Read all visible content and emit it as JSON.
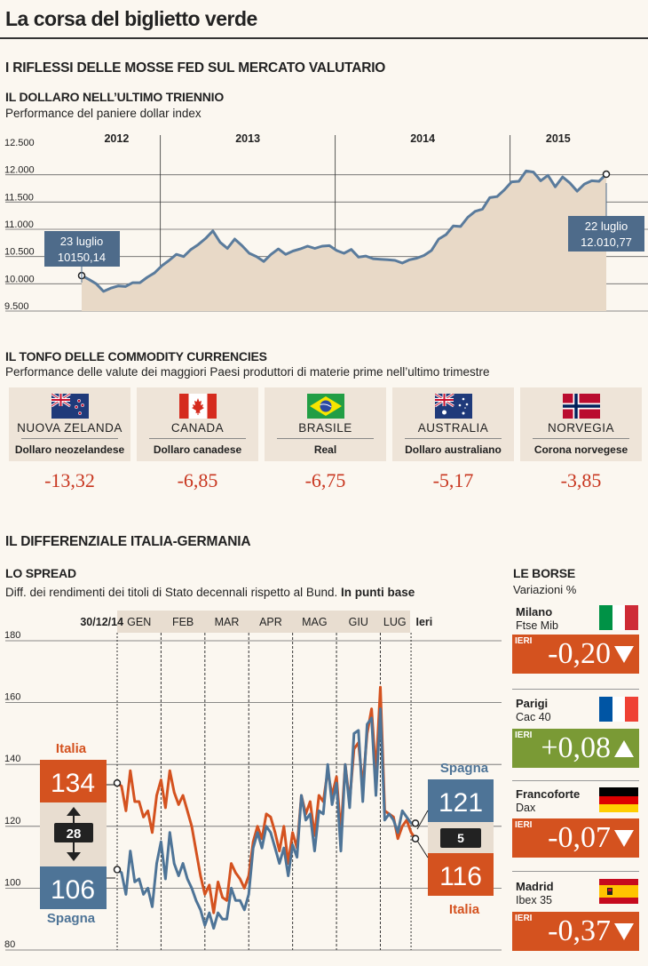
{
  "header": {
    "title": "La corsa del biglietto verde"
  },
  "section1": {
    "title": "I RIFLESSI DELLE MOSSE FED SUL MERCATO VALUTARIO",
    "chart_title": "IL DOLLARO NELL’ULTIMO TRIENNIO",
    "chart_subtitle": "Performance del paniere dollar index",
    "start_label": {
      "date": "23 luglio",
      "value": "10150,14"
    },
    "end_label": {
      "date": "22 luglio",
      "value": "12.010,77"
    }
  },
  "section2": {
    "title": "IL TONFO DELLE COMMODITY CURRENCIES",
    "subtitle": "Performance delle valute dei maggiori Paesi produttori di materie prime nell’ultimo trimestre",
    "currencies": [
      {
        "country": "NUOVA ZELANDA",
        "currency": "Dollaro neozelandese",
        "value": "-13,32",
        "flag": "new-zealand-flag"
      },
      {
        "country": "CANADA",
        "currency": "Dollaro canadese",
        "value": "-6,85",
        "flag": "canada-flag"
      },
      {
        "country": "BRASILE",
        "currency": "Real",
        "value": "-6,75",
        "flag": "brazil-flag"
      },
      {
        "country": "AUSTRALIA",
        "currency": "Dollaro australiano",
        "value": "-5,17",
        "flag": "australia-flag"
      },
      {
        "country": "NORVEGIA",
        "currency": "Corona norvegese",
        "value": "-3,85",
        "flag": "norway-flag"
      }
    ]
  },
  "section3": {
    "title": "IL DIFFERENZIALE ITALIA-GERMANIA",
    "spread_title": "LO SPREAD",
    "spread_subtitle": "Diff. dei rendimenti dei titoli di Stato decennali rispetto al Bund.",
    "spread_unit": "In punti base",
    "left_panel": {
      "italia_label": "Italia",
      "italia_value": "134",
      "diff": "28",
      "spagna_value": "106",
      "spagna_label": "Spagna"
    },
    "right_panel": {
      "spagna_label": "Spagna",
      "spagna_value": "121",
      "diff": "5",
      "italia_value": "116",
      "italia_label": "Italia"
    }
  },
  "borse": {
    "title": "LE BORSE",
    "subtitle": "Variazioni %",
    "ieri_label": "IERI",
    "items": [
      {
        "city": "Milano",
        "index": "Ftse Mib",
        "value": "-0,20",
        "direction": "down",
        "color": "#d4521f",
        "flag": "italy-flag"
      },
      {
        "city": "Parigi",
        "index": "Cac 40",
        "value": "+0,08",
        "direction": "up",
        "color": "#7a9a35",
        "flag": "france-flag"
      },
      {
        "city": "Francoforte",
        "index": "Dax",
        "value": "-0,07",
        "direction": "down",
        "color": "#d4521f",
        "flag": "germany-flag"
      },
      {
        "city": "Madrid",
        "index": "Ibex 35",
        "value": "-0,37",
        "direction": "down",
        "color": "#d4521f",
        "flag": "spain-flag"
      }
    ]
  },
  "colors": {
    "usd_line": "#5a7b9c",
    "usd_fill": "#e8d9c7",
    "italia": "#d4521f",
    "spagna": "#4e7497",
    "negative": "#c8361f"
  },
  "chart_data": [
    {
      "type": "area",
      "title": "IL DOLLARO NELL’ULTIMO TRIENNIO",
      "subtitle": "Performance del paniere dollar index",
      "x_labels": [
        "2012",
        "2013",
        "2014",
        "2015"
      ],
      "y_ticks": [
        "9.500",
        "10.000",
        "10.500",
        "11.000",
        "11.500",
        "12.000",
        "12.500"
      ],
      "ylim": [
        9500,
        12500
      ],
      "x_range": [
        0,
        36
      ],
      "series": [
        {
          "name": "dollar index",
          "x": [
            0,
            0.5,
            1,
            1.5,
            2,
            2.5,
            3,
            3.5,
            4,
            4.5,
            5,
            5.5,
            6,
            6.5,
            7,
            7.5,
            8,
            8.5,
            9,
            9.5,
            10,
            10.5,
            11,
            11.5,
            12,
            12.5,
            13,
            13.5,
            14,
            14.5,
            15,
            15.5,
            16,
            16.5,
            17,
            17.5,
            18,
            18.5,
            19,
            19.5,
            20,
            20.5,
            21,
            21.5,
            22,
            22.5,
            23,
            23.5,
            24,
            24.5,
            25,
            25.5,
            26,
            26.5,
            27,
            27.5,
            28,
            28.5,
            29,
            29.5,
            30,
            30.5,
            31,
            31.5,
            32,
            32.5,
            33,
            33.5,
            34,
            34.5,
            35,
            35.5,
            36
          ],
          "values": [
            10150,
            10080,
            10000,
            9860,
            9920,
            9960,
            9950,
            10020,
            10020,
            10120,
            10200,
            10330,
            10430,
            10540,
            10500,
            10630,
            10720,
            10830,
            10970,
            10760,
            10650,
            10820,
            10700,
            10560,
            10500,
            10410,
            10540,
            10640,
            10540,
            10600,
            10640,
            10690,
            10650,
            10690,
            10700,
            10610,
            10560,
            10630,
            10490,
            10510,
            10460,
            10450,
            10440,
            10430,
            10380,
            10440,
            10470,
            10520,
            10610,
            10820,
            10900,
            11060,
            11050,
            11220,
            11330,
            11370,
            11580,
            11600,
            11720,
            11870,
            11880,
            12070,
            12050,
            11890,
            11990,
            11780,
            11960,
            11850,
            11700,
            11830,
            11890,
            11880,
            12010
          ]
        }
      ]
    },
    {
      "type": "bar",
      "title": "IL TONFO DELLE COMMODITY CURRENCIES",
      "categories": [
        "NUOVA ZELANDA",
        "CANADA",
        "BRASILE",
        "AUSTRALIA",
        "NORVEGIA"
      ],
      "values": [
        -13.32,
        -6.85,
        -6.75,
        -5.17,
        -3.85
      ]
    },
    {
      "type": "line",
      "title": "LO SPREAD",
      "ylabel": "In punti base",
      "ylim": [
        80,
        180
      ],
      "y_ticks": [
        "80",
        "100",
        "120",
        "140",
        "160",
        "180"
      ],
      "x_labels": [
        "30/12/14",
        "GEN",
        "FEB",
        "MAR",
        "APR",
        "MAG",
        "GIU",
        "LUG",
        "Ieri"
      ],
      "x_range": [
        0,
        68
      ],
      "series": [
        {
          "name": "Italia",
          "x": [
            0,
            1,
            2,
            3,
            4,
            5,
            6,
            7,
            8,
            9,
            10,
            11,
            12,
            13,
            14,
            15,
            16,
            17,
            18,
            19,
            20,
            21,
            22,
            23,
            24,
            25,
            26,
            27,
            28,
            29,
            30,
            31,
            32,
            33,
            34,
            35,
            36,
            37,
            38,
            39,
            40,
            41,
            42,
            43,
            44,
            45,
            46,
            47,
            48,
            49,
            50,
            51,
            52,
            53,
            54,
            55,
            56,
            57,
            58,
            59,
            60,
            61,
            62,
            63,
            64,
            65,
            66,
            67,
            68
          ],
          "values": [
            134,
            133,
            125,
            138,
            128,
            128,
            123,
            125,
            118,
            130,
            135,
            126,
            138,
            131,
            127,
            130,
            125,
            120,
            112,
            104,
            98,
            101,
            92,
            102,
            97,
            96,
            108,
            105,
            103,
            100,
            104,
            115,
            120,
            116,
            124,
            123,
            118,
            112,
            120,
            108,
            118,
            113,
            130,
            124,
            128,
            117,
            130,
            128,
            138,
            130,
            136,
            118,
            140,
            128,
            145,
            147,
            133,
            150,
            158,
            137,
            165,
            125,
            124,
            123,
            116,
            120,
            122,
            118,
            116
          ]
        },
        {
          "name": "Spagna",
          "x": [
            0,
            1,
            2,
            3,
            4,
            5,
            6,
            7,
            8,
            9,
            10,
            11,
            12,
            13,
            14,
            15,
            16,
            17,
            18,
            19,
            20,
            21,
            22,
            23,
            24,
            25,
            26,
            27,
            28,
            29,
            30,
            31,
            32,
            33,
            34,
            35,
            36,
            37,
            38,
            39,
            40,
            41,
            42,
            43,
            44,
            45,
            46,
            47,
            48,
            49,
            50,
            51,
            52,
            53,
            54,
            55,
            56,
            57,
            58,
            59,
            60,
            61,
            62,
            63,
            64,
            65,
            66,
            67,
            68
          ],
          "values": [
            106,
            105,
            98,
            112,
            102,
            103,
            98,
            100,
            94,
            108,
            115,
            103,
            118,
            108,
            104,
            108,
            103,
            100,
            96,
            93,
            88,
            92,
            87,
            92,
            90,
            90,
            100,
            96,
            96,
            93,
            98,
            113,
            118,
            113,
            120,
            118,
            113,
            108,
            113,
            104,
            114,
            110,
            130,
            122,
            124,
            112,
            125,
            124,
            140,
            127,
            134,
            112,
            140,
            126,
            150,
            151,
            128,
            153,
            155,
            130,
            158,
            122,
            124,
            122,
            118,
            125,
            123,
            121,
            121
          ]
        }
      ]
    },
    {
      "type": "table",
      "title": "LE BORSE",
      "categories": [
        "Milano",
        "Parigi",
        "Francoforte",
        "Madrid"
      ],
      "values": [
        -0.2,
        0.08,
        -0.07,
        -0.37
      ]
    }
  ]
}
